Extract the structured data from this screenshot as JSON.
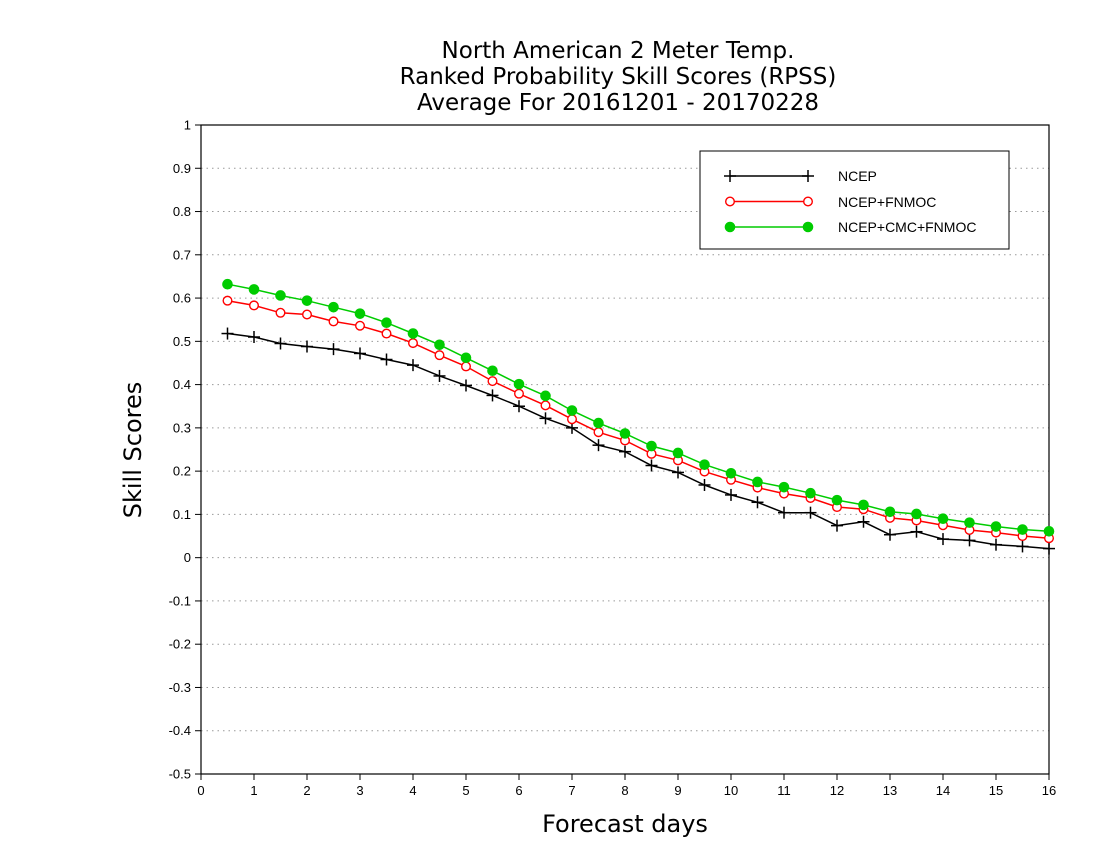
{
  "chart_data": {
    "type": "line",
    "title": [
      "North American 2 Meter Temp.",
      "Ranked Probability Skill Scores (RPSS)",
      "Average For 20161201 - 20170228"
    ],
    "xlabel": "Forecast days",
    "ylabel": "Skill Scores",
    "xlim": [
      0,
      16
    ],
    "ylim": [
      -0.5,
      1
    ],
    "xticks": [
      "0",
      "1",
      "2",
      "3",
      "4",
      "5",
      "6",
      "7",
      "8",
      "9",
      "10",
      "11",
      "12",
      "13",
      "14",
      "15",
      "16"
    ],
    "yticks": [
      "1",
      "0.9",
      "0.8",
      "0.7",
      "0.6",
      "0.5",
      "0.4",
      "0.3",
      "0.2",
      "0.1",
      "0",
      "-0.1",
      "-0.2",
      "-0.3",
      "-0.4",
      "-0.5"
    ],
    "grid": true,
    "legend_position": "top-right",
    "x": [
      0.5,
      1,
      1.5,
      2,
      2.5,
      3,
      3.5,
      4,
      4.5,
      5,
      5.5,
      6,
      6.5,
      7,
      7.5,
      8,
      8.5,
      9,
      9.5,
      10,
      10.5,
      11,
      11.5,
      12,
      12.5,
      13,
      13.5,
      14,
      14.5,
      15,
      15.5,
      16
    ],
    "series": [
      {
        "name": "NCEP",
        "color": "#000000",
        "marker": "plus",
        "values": [
          0.518,
          0.51,
          0.495,
          0.488,
          0.482,
          0.472,
          0.458,
          0.445,
          0.42,
          0.398,
          0.375,
          0.35,
          0.322,
          0.3,
          0.26,
          0.245,
          0.213,
          0.197,
          0.168,
          0.145,
          0.128,
          0.104,
          0.104,
          0.074,
          0.083,
          0.053,
          0.06,
          0.043,
          0.04,
          0.03,
          0.026,
          0.021
        ]
      },
      {
        "name": "NCEP+FNMOC",
        "color": "#ff0000",
        "marker": "open-circle",
        "values": [
          0.594,
          0.583,
          0.566,
          0.562,
          0.546,
          0.536,
          0.518,
          0.496,
          0.468,
          0.442,
          0.408,
          0.379,
          0.352,
          0.32,
          0.29,
          0.271,
          0.24,
          0.225,
          0.199,
          0.18,
          0.162,
          0.148,
          0.138,
          0.117,
          0.112,
          0.092,
          0.086,
          0.075,
          0.064,
          0.058,
          0.05,
          0.045
        ]
      },
      {
        "name": "NCEP+CMC+FNMOC",
        "color": "#00cc00",
        "marker": "filled-circle",
        "values": [
          0.632,
          0.62,
          0.606,
          0.594,
          0.579,
          0.564,
          0.543,
          0.518,
          0.492,
          0.462,
          0.432,
          0.401,
          0.374,
          0.34,
          0.311,
          0.287,
          0.258,
          0.242,
          0.215,
          0.195,
          0.175,
          0.163,
          0.149,
          0.133,
          0.122,
          0.106,
          0.101,
          0.09,
          0.081,
          0.072,
          0.065,
          0.061
        ]
      }
    ]
  }
}
